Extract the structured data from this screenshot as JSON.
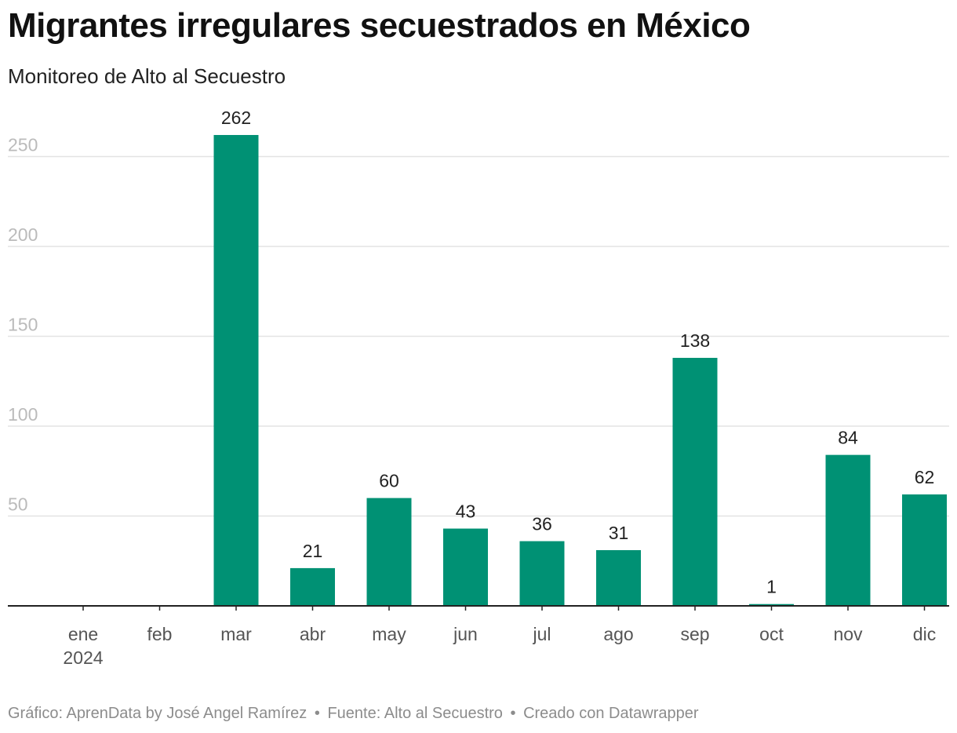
{
  "title": "Migrantes irregulares secuestrados en México",
  "subtitle": "Monitoreo de Alto al Secuestro",
  "footer": {
    "credit": "Gráfico: AprenData by José Angel Ramírez",
    "source": "Fuente: Alto al Secuestro",
    "tool": "Creado con Datawrapper",
    "separator": "•"
  },
  "colors": {
    "bar": "#009174",
    "grid": "#e3e3e3",
    "axis": "#222222",
    "tick_label": "#bbbbbb"
  },
  "chart_data": {
    "type": "bar",
    "categories": [
      "ene",
      "feb",
      "mar",
      "abr",
      "may",
      "jun",
      "jul",
      "ago",
      "sep",
      "oct",
      "nov",
      "dic"
    ],
    "year_label": "2024",
    "values": [
      null,
      null,
      262,
      21,
      60,
      43,
      36,
      31,
      138,
      1,
      84,
      62
    ],
    "y_ticks": [
      50,
      100,
      150,
      200,
      250
    ],
    "ylim": [
      0,
      262
    ],
    "grid": true,
    "data_labels": true,
    "xlabel": "",
    "ylabel": ""
  }
}
